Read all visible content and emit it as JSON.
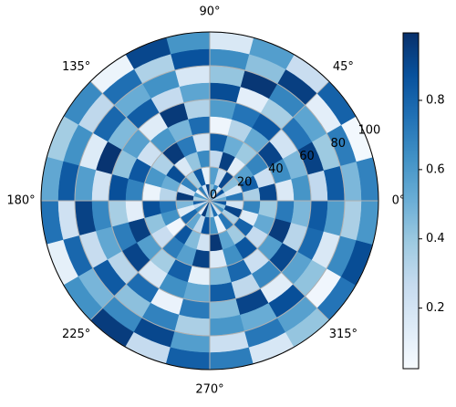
{
  "chart_data": {
    "type": "polar-heatmap",
    "cmap": "Blues",
    "rlim": [
      0,
      100
    ],
    "rticks": [
      0,
      20,
      40,
      60,
      80,
      100
    ],
    "thetaticks": [
      {
        "value": 0,
        "label": "0°"
      },
      {
        "value": 45,
        "label": "45°"
      },
      {
        "value": 90,
        "label": "90°"
      },
      {
        "value": 135,
        "label": "135°"
      },
      {
        "value": 180,
        "label": "180°"
      },
      {
        "value": 225,
        "label": "225°"
      },
      {
        "value": 270,
        "label": "270°"
      },
      {
        "value": 315,
        "label": "315°"
      }
    ],
    "clim": [
      0.025,
      0.995
    ],
    "cticks": [
      0.2,
      0.4,
      0.6,
      0.8
    ],
    "values": [
      [
        0.52,
        0.31,
        0.88,
        0.14,
        0.67,
        0.45,
        0.93,
        0.22,
        0.71,
        0.08,
        0.59,
        0.36,
        0.81,
        0.27,
        0.64,
        0.12,
        0.95,
        0.48,
        0.33,
        0.76,
        0.19,
        0.62,
        0.41,
        0.85
      ],
      [
        0.73,
        0.18,
        0.44,
        0.91,
        0.26,
        0.58,
        0.11,
        0.84,
        0.37,
        0.69,
        0.23,
        0.96,
        0.47,
        0.15,
        0.78,
        0.54,
        0.29,
        0.87,
        0.62,
        0.09,
        0.73,
        0.35,
        0.92,
        0.21
      ],
      [
        0.35,
        0.82,
        0.57,
        0.13,
        0.94,
        0.28,
        0.66,
        0.41,
        0.17,
        0.89,
        0.52,
        0.31,
        0.74,
        0.63,
        0.06,
        0.86,
        0.45,
        0.21,
        0.97,
        0.55,
        0.38,
        0.81,
        0.14,
        0.68
      ],
      [
        0.91,
        0.24,
        0.68,
        0.39,
        0.51,
        0.83,
        0.19,
        0.72,
        0.96,
        0.34,
        0.61,
        0.08,
        0.88,
        0.42,
        0.25,
        0.71,
        0.57,
        0.93,
        0.16,
        0.64,
        0.86,
        0.27,
        0.53,
        0.39
      ],
      [
        0.16,
        0.65,
        0.92,
        0.53,
        0.32,
        0.07,
        0.77,
        0.48,
        0.61,
        0.23,
        0.85,
        0.69,
        0.12,
        0.94,
        0.58,
        0.37,
        0.82,
        0.11,
        0.46,
        0.79,
        0.24,
        0.58,
        0.95,
        0.72
      ],
      [
        0.62,
        0.47,
        0.21,
        0.85,
        0.74,
        0.59,
        0.33,
        0.96,
        0.14,
        0.57,
        0.42,
        0.88,
        0.36,
        0.71,
        0.92,
        0.18,
        0.64,
        0.53,
        0.83,
        0.29,
        0.67,
        0.91,
        0.31,
        0.47
      ],
      [
        0.28,
        0.93,
        0.74,
        0.36,
        0.12,
        0.89,
        0.55,
        0.27,
        0.83,
        0.46,
        0.98,
        0.21,
        0.67,
        0.54,
        0.31,
        0.77,
        0.09,
        0.72,
        0.45,
        0.92,
        0.13,
        0.56,
        0.78,
        0.84
      ],
      [
        0.84,
        0.39,
        0.55,
        0.68,
        0.97,
        0.41,
        0.18,
        0.63,
        0.52,
        0.79,
        0.15,
        0.58,
        0.93,
        0.26,
        0.84,
        0.43,
        0.69,
        0.35,
        0.61,
        0.52,
        0.88,
        0.42,
        0.17,
        0.59
      ],
      [
        0.47,
        0.71,
        0.12,
        0.94,
        0.43,
        0.65,
        0.87,
        0.34,
        0.76,
        0.29,
        0.63,
        0.84,
        0.22,
        0.79,
        0.48,
        0.66,
        0.91,
        0.58,
        0.24,
        0.73,
        0.57,
        0.06,
        0.66,
        0.35
      ],
      [
        0.69,
        0.05,
        0.81,
        0.25,
        0.58,
        0.17,
        0.62,
        0.91,
        0.08,
        0.66,
        0.37,
        0.54,
        0.75,
        0.11,
        0.63,
        0.95,
        0.27,
        0.82,
        0.71,
        0.18,
        0.41,
        0.74,
        0.89,
        0.61
      ]
    ]
  }
}
